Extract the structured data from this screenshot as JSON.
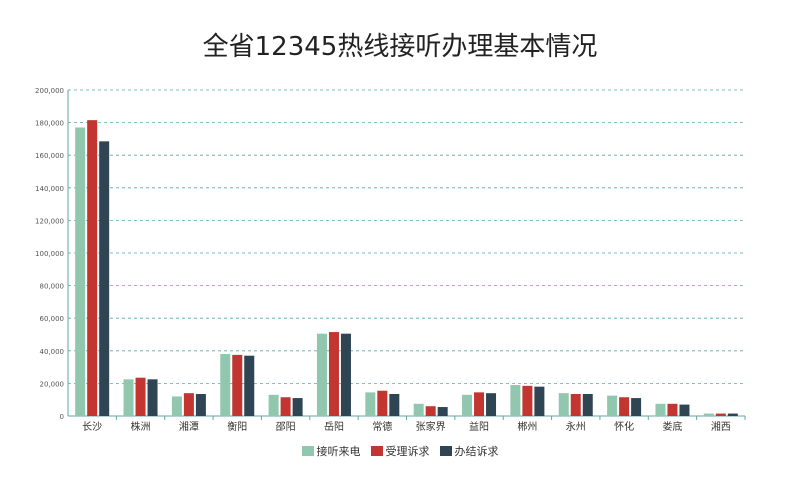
{
  "chart_data": {
    "type": "bar",
    "title": "全省12345热线接听办理基本情况",
    "categories": [
      "长沙",
      "株洲",
      "湘潭",
      "衡阳",
      "邵阳",
      "岳阳",
      "常德",
      "张家界",
      "益阳",
      "郴州",
      "永州",
      "怀化",
      "娄底",
      "湘西"
    ],
    "series": [
      {
        "name": "接听来电",
        "color": "#91c7ae",
        "values": [
          177000,
          22500,
          12000,
          38000,
          13000,
          50500,
          14500,
          7500,
          13000,
          19000,
          14000,
          12500,
          7500,
          1500
        ]
      },
      {
        "name": "受理诉求",
        "color": "#c23531",
        "values": [
          181500,
          23500,
          14000,
          37500,
          11500,
          51500,
          15500,
          6000,
          14500,
          18500,
          13500,
          11500,
          7500,
          1500
        ]
      },
      {
        "name": "办结诉求",
        "color": "#2f4554",
        "values": [
          168500,
          22500,
          13500,
          37000,
          11000,
          50500,
          13500,
          5500,
          14000,
          18000,
          13500,
          11000,
          7000,
          1500
        ]
      }
    ],
    "ylim": [
      0,
      200000
    ],
    "yticks": [
      "0",
      "20,000",
      "40,000",
      "60,000",
      "80,000",
      "100,000",
      "120,000",
      "140,000",
      "160,000",
      "180,000",
      "200,000"
    ],
    "grid": true,
    "legend_position": "bottom"
  }
}
